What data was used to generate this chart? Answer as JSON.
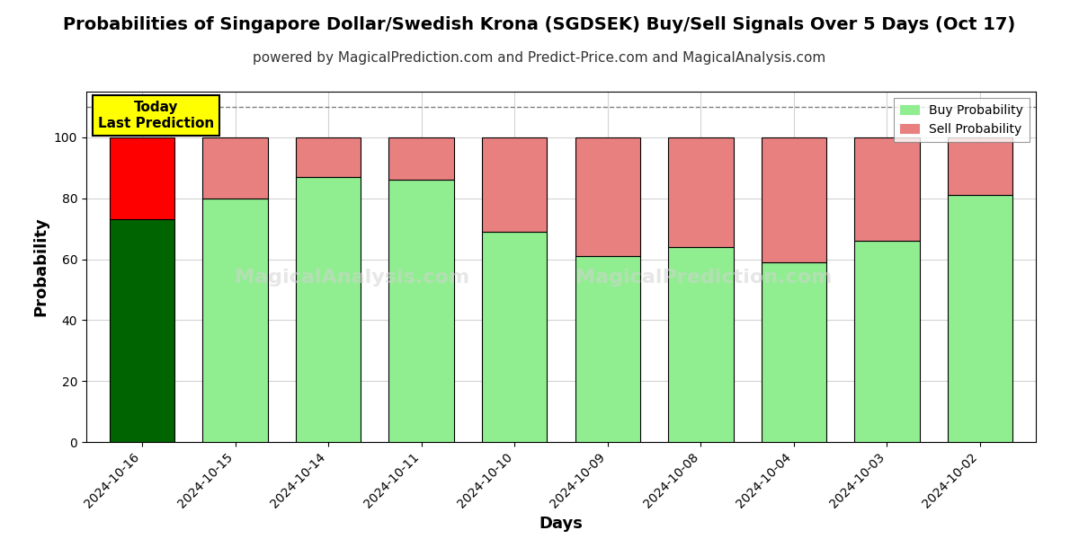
{
  "title": "Probabilities of Singapore Dollar/Swedish Krona (SGDSEK) Buy/Sell Signals Over 5 Days (Oct 17)",
  "subtitle": "powered by MagicalPrediction.com and Predict-Price.com and MagicalAnalysis.com",
  "xlabel": "Days",
  "ylabel": "Probability",
  "categories": [
    "2024-10-16",
    "2024-10-15",
    "2024-10-14",
    "2024-10-11",
    "2024-10-10",
    "2024-10-09",
    "2024-10-08",
    "2024-10-04",
    "2024-10-03",
    "2024-10-02"
  ],
  "buy_values": [
    73,
    80,
    87,
    86,
    69,
    61,
    64,
    59,
    66,
    81
  ],
  "sell_values": [
    27,
    20,
    13,
    14,
    31,
    39,
    36,
    41,
    34,
    19
  ],
  "today_buy_color": "#006400",
  "today_sell_color": "#ff0000",
  "buy_color": "#90EE90",
  "sell_color": "#E88080",
  "bar_edge_color": "#000000",
  "ylim": [
    0,
    115
  ],
  "dashed_line_y": 110,
  "today_label_bg": "#ffff00",
  "today_label_text": "Today\nLast Prediction",
  "legend_buy_label": "Buy Probability",
  "legend_sell_label": "Sell Probability",
  "title_fontsize": 14,
  "subtitle_fontsize": 11,
  "axis_label_fontsize": 13,
  "tick_fontsize": 10,
  "background_color": "#ffffff",
  "plot_bg_color": "#ffffff",
  "bar_width": 0.7
}
